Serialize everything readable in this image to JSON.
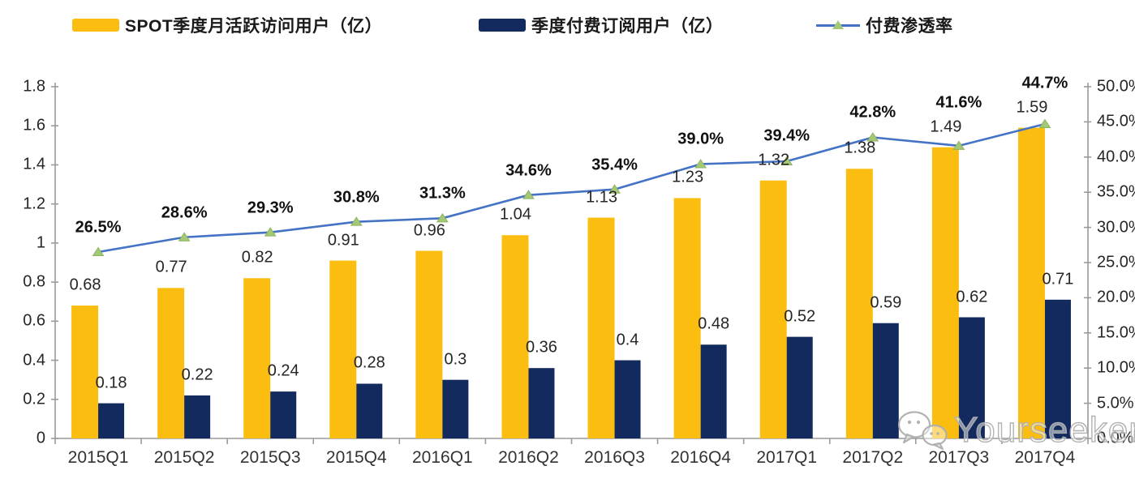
{
  "chart_data": {
    "type": "bar+line combo",
    "categories": [
      "2015Q1",
      "2015Q2",
      "2015Q3",
      "2015Q4",
      "2016Q1",
      "2016Q2",
      "2016Q3",
      "2016Q4",
      "2017Q1",
      "2017Q2",
      "2017Q3",
      "2017Q4"
    ],
    "series": [
      {
        "name": "SPOT季度月活跃访问用户（亿）",
        "type": "bar",
        "axis": "left",
        "color": "#fbbe10",
        "values": [
          0.68,
          0.77,
          0.82,
          0.91,
          0.96,
          1.04,
          1.13,
          1.23,
          1.32,
          1.38,
          1.49,
          1.59
        ],
        "labels": [
          "0.68",
          "0.77",
          "0.82",
          "0.91",
          "0.96",
          "1.04",
          "1.13",
          "1.23",
          "1.32",
          "1.38",
          "1.49",
          "1.59"
        ]
      },
      {
        "name": "季度付费订阅用户（亿）",
        "type": "bar",
        "axis": "left",
        "color": "#132a5e",
        "values": [
          0.18,
          0.22,
          0.24,
          0.28,
          0.3,
          0.36,
          0.4,
          0.48,
          0.52,
          0.59,
          0.62,
          0.71
        ],
        "labels": [
          "0.18",
          "0.22",
          "0.24",
          "0.28",
          "0.3",
          "0.36",
          "0.4",
          "0.48",
          "0.52",
          "0.59",
          "0.62",
          "0.71"
        ]
      },
      {
        "name": "付费渗透率",
        "type": "line",
        "axis": "right",
        "color": "#4472c4",
        "marker": "triangle",
        "marker_color": "#a5c877",
        "values": [
          26.5,
          28.6,
          29.3,
          30.8,
          31.3,
          34.6,
          35.4,
          39.0,
          39.4,
          42.8,
          41.6,
          44.7
        ],
        "labels": [
          "26.5%",
          "28.6%",
          "29.3%",
          "30.8%",
          "31.3%",
          "34.6%",
          "35.4%",
          "39.0%",
          "39.4%",
          "42.8%",
          "41.6%",
          "44.7%"
        ]
      }
    ],
    "left_axis": {
      "min": 0,
      "max": 1.8,
      "step": 0.2,
      "tick_labels": [
        "0",
        "0.2",
        "0.4",
        "0.6",
        "0.8",
        "1",
        "1.2",
        "1.4",
        "1.6",
        "1.8"
      ]
    },
    "right_axis": {
      "min": 0,
      "max": 50,
      "step": 5,
      "tick_labels": [
        "0.0%",
        "5.0%",
        "10.0%",
        "15.0%",
        "20.0%",
        "25.0%",
        "30.0%",
        "35.0%",
        "40.0%",
        "45.0%",
        "50.0%"
      ]
    },
    "grid": false,
    "legend_position": "top",
    "axis_color": "#9a9a9a"
  },
  "watermark": {
    "text": "Yourseeker",
    "icon": "wechat-icon"
  }
}
